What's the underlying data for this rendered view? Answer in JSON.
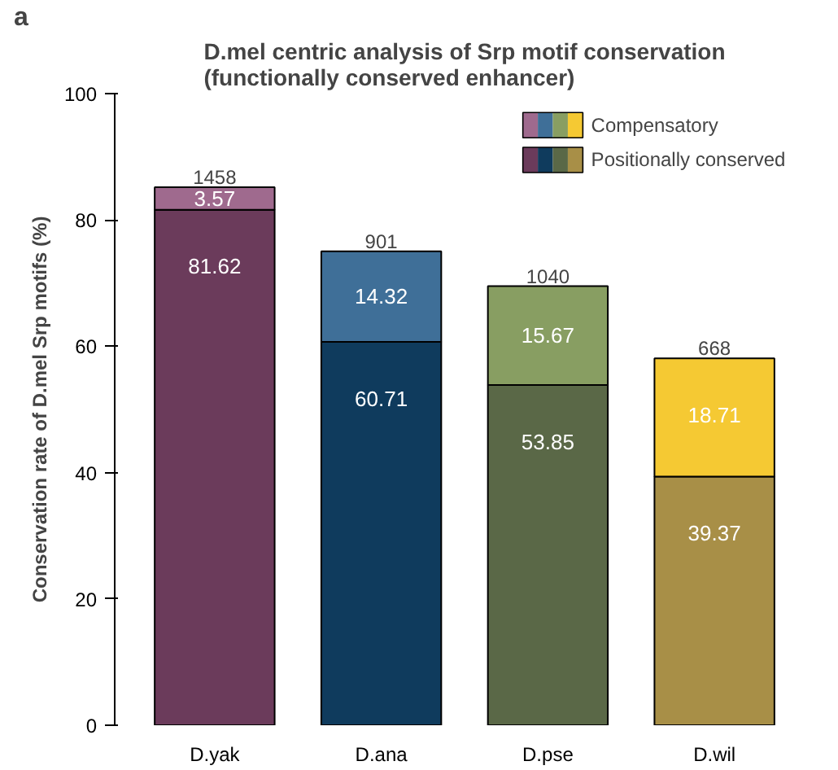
{
  "chart_data": {
    "type": "bar",
    "title": "D.mel centric analysis of Srp motif conservation\n(functionally conserved enhancer)",
    "ylabel": "Conservation rate of D.mel Srp motifs (%)",
    "annotations": [
      "a",
      {
        "text": "1458",
        "x": "D.yak",
        "y": 85.19
      },
      {
        "text": "901",
        "x": "D.ana",
        "y": 75.03
      },
      {
        "text": "1040",
        "x": "D.pse",
        "y": 69.52
      },
      {
        "text": "668",
        "x": "D.wil",
        "y": 58.08
      }
    ],
    "categories": [
      "D.yak",
      "D.ana",
      "D.pse",
      "D.wil"
    ],
    "stacked": true,
    "series": [
      {
        "name": "Positionally conserved",
        "colors": [
          "#6b3b5b",
          "#0f3b5d",
          "#5a6847",
          "#a88f47"
        ],
        "values": [
          81.62,
          60.71,
          53.85,
          39.37
        ]
      },
      {
        "name": "Compensatory",
        "colors": [
          "#9f6a8e",
          "#3f6f98",
          "#889e62",
          "#f5c933"
        ],
        "values": [
          3.57,
          14.32,
          15.67,
          18.71
        ]
      }
    ],
    "data_labels": true,
    "ylim": [
      0,
      100
    ],
    "yticks": [
      0,
      20,
      40,
      60,
      80,
      100
    ],
    "grid": false,
    "legend": "top right"
  }
}
